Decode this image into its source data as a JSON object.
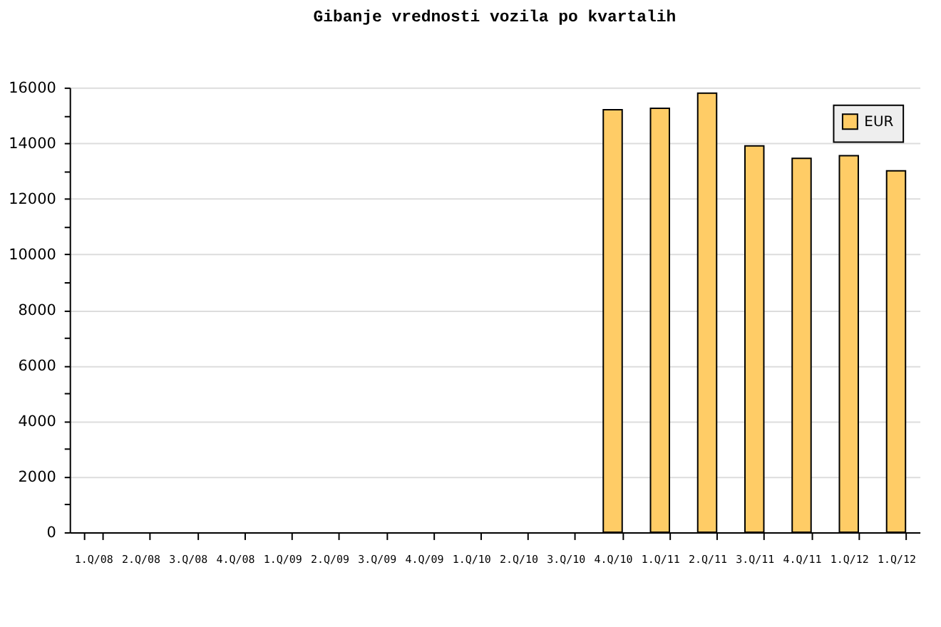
{
  "chart_data": {
    "type": "bar",
    "title": "Gibanje vrednosti vozila po kvartalih",
    "categories": [
      "1.Q/08",
      "2.Q/08",
      "3.Q/08",
      "4.Q/08",
      "1.Q/09",
      "2.Q/09",
      "3.Q/09",
      "4.Q/09",
      "1.Q/10",
      "2.Q/10",
      "3.Q/10",
      "4.Q/10",
      "1.Q/11",
      "2.Q/11",
      "3.Q/11",
      "4.Q/11",
      "1.Q/12",
      "1.Q/12"
    ],
    "series": [
      {
        "name": "EUR",
        "color": "#ffcc66",
        "values": [
          null,
          null,
          null,
          null,
          null,
          null,
          null,
          null,
          null,
          null,
          null,
          15200,
          15250,
          15800,
          13900,
          13450,
          13550,
          13000
        ]
      }
    ],
    "ylim": [
      0,
      16000
    ],
    "yticks": [
      0,
      {
        "value": 1000,
        "label": null
      },
      2000,
      {
        "value": 3000,
        "label": null
      },
      4000,
      {
        "value": 5000,
        "label": null
      },
      6000,
      {
        "value": 7000,
        "label": null
      },
      8000,
      {
        "value": 9000,
        "label": null
      },
      10000,
      {
        "value": 11000,
        "label": null
      },
      12000,
      {
        "value": 13000,
        "label": null
      },
      14000,
      {
        "value": 15000,
        "label": null
      },
      16000
    ],
    "grid": "y",
    "legend": "top right"
  }
}
